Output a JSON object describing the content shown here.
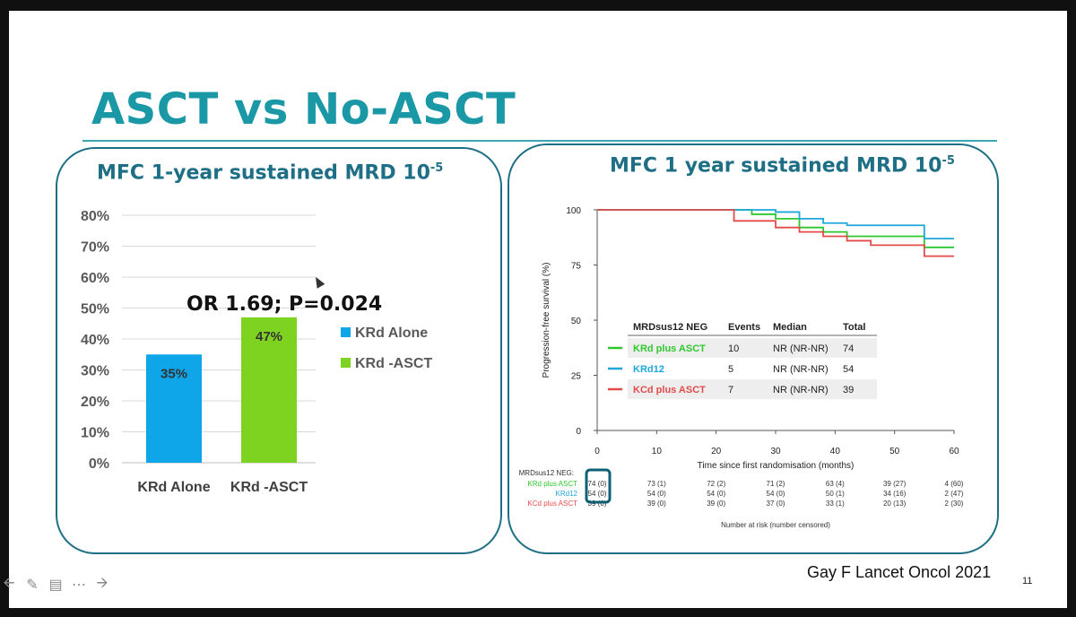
{
  "slide": {
    "title": "ASCT vs No-ASCT",
    "citation": "Gay F Lancet Oncol 2021",
    "page_number": "11"
  },
  "left_panel": {
    "title_main": "MFC 1-year sustained MRD 10",
    "title_sup": "-5",
    "odds_annotation": "OR 1.69; P=0.024",
    "legend": [
      "KRd Alone",
      "KRd -ASCT"
    ],
    "colors": {
      "krd_alone": "#0ea5e9",
      "krd_asct": "#7ed321"
    }
  },
  "right_panel": {
    "title_main": "MFC 1 year sustained MRD 10",
    "title_sup": "-5",
    "table": {
      "headers": [
        "MRDsus12 NEG",
        "Events",
        "Median",
        "Total"
      ],
      "rows": [
        {
          "arm": "KRd plus ASCT",
          "events": "10",
          "median": "NR (NR-NR)",
          "total": "74",
          "color": "#2ec82e"
        },
        {
          "arm": "KRd12",
          "events": "5",
          "median": "NR (NR-NR)",
          "total": "54",
          "color": "#1ea7dc"
        },
        {
          "arm": "KCd plus ASCT",
          "events": "7",
          "median": "NR (NR-NR)",
          "total": "39",
          "color": "#e34b4b"
        }
      ]
    },
    "risk_table": {
      "header": "MRDsus12 NEG:",
      "footer": "Number at risk (number censored)",
      "rows": [
        {
          "label": "KRd plus ASCT",
          "color": "#2ec82e",
          "values": [
            "74 (0)",
            "73 (1)",
            "72 (2)",
            "71 (2)",
            "63 (4)",
            "39 (27)",
            "4 (60)"
          ]
        },
        {
          "label": "KRd12",
          "color": "#1ea7dc",
          "values": [
            "54 (0)",
            "54 (0)",
            "54 (0)",
            "54 (0)",
            "50 (1)",
            "34 (16)",
            "2 (47)"
          ]
        },
        {
          "label": "KCd plus ASCT",
          "color": "#e34b4b",
          "values": [
            "39 (0)",
            "39 (0)",
            "39 (0)",
            "37 (0)",
            "33 (1)",
            "20 (13)",
            "2 (30)"
          ]
        }
      ]
    }
  },
  "toolbar": {
    "icons": [
      "arrow-left-icon",
      "pen-icon",
      "subtitles-icon",
      "more-icon",
      "arrow-right-icon"
    ]
  },
  "chart_data": [
    {
      "type": "bar",
      "categories": [
        "KRd Alone",
        "KRd -ASCT"
      ],
      "values": [
        35,
        47
      ],
      "data_labels": [
        "35%",
        "47%"
      ],
      "ylim": [
        0,
        80
      ],
      "yticks": [
        "0%",
        "10%",
        "20%",
        "30%",
        "40%",
        "50%",
        "60%",
        "70%",
        "80%"
      ],
      "grid": true,
      "legend_position": "right",
      "series": [
        {
          "name": "KRd Alone",
          "values": [
            35,
            null
          ],
          "color": "#0ea5e9"
        },
        {
          "name": "KRd -ASCT",
          "values": [
            null,
            47
          ],
          "color": "#7ed321"
        }
      ]
    },
    {
      "type": "line",
      "xlabel": "Time since first randomisation (months)",
      "ylabel": "Progression-free survival (%)",
      "xlim": [
        0,
        60
      ],
      "ylim": [
        0,
        100
      ],
      "xticks": [
        0,
        10,
        20,
        30,
        40,
        50,
        60
      ],
      "yticks": [
        0,
        25,
        50,
        75,
        100
      ],
      "series": [
        {
          "name": "KRd plus ASCT",
          "color": "#2ec82e",
          "x": [
            0,
            22,
            26,
            30,
            34,
            38,
            42,
            55,
            60
          ],
          "y": [
            100,
            100,
            98,
            96,
            92,
            90,
            88,
            83,
            83
          ]
        },
        {
          "name": "KRd12",
          "color": "#1ea7dc",
          "x": [
            0,
            22,
            30,
            34,
            38,
            42,
            55,
            60
          ],
          "y": [
            100,
            100,
            99,
            96,
            94,
            93,
            87,
            87
          ]
        },
        {
          "name": "KCd plus ASCT",
          "color": "#e34b4b",
          "x": [
            0,
            22,
            23,
            30,
            34,
            38,
            42,
            46,
            55,
            60
          ],
          "y": [
            100,
            100,
            95,
            92,
            90,
            88,
            86,
            84,
            79,
            79
          ]
        }
      ]
    }
  ]
}
